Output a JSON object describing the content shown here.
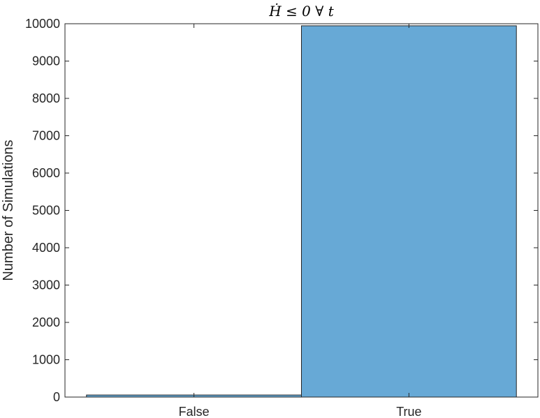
{
  "chart_data": {
    "type": "bar",
    "title": "Ḣ ≤ 0 ∀ t",
    "xlabel": "",
    "ylabel": "Number of Simulations",
    "categories": [
      "False",
      "True"
    ],
    "values": [
      55,
      9945
    ],
    "ylim": [
      0,
      10000
    ],
    "yticks": [
      0,
      1000,
      2000,
      3000,
      4000,
      5000,
      6000,
      7000,
      8000,
      9000,
      10000
    ],
    "grid": false,
    "bar_color": "#67a9d6",
    "bar_edge_color": "#262626"
  }
}
